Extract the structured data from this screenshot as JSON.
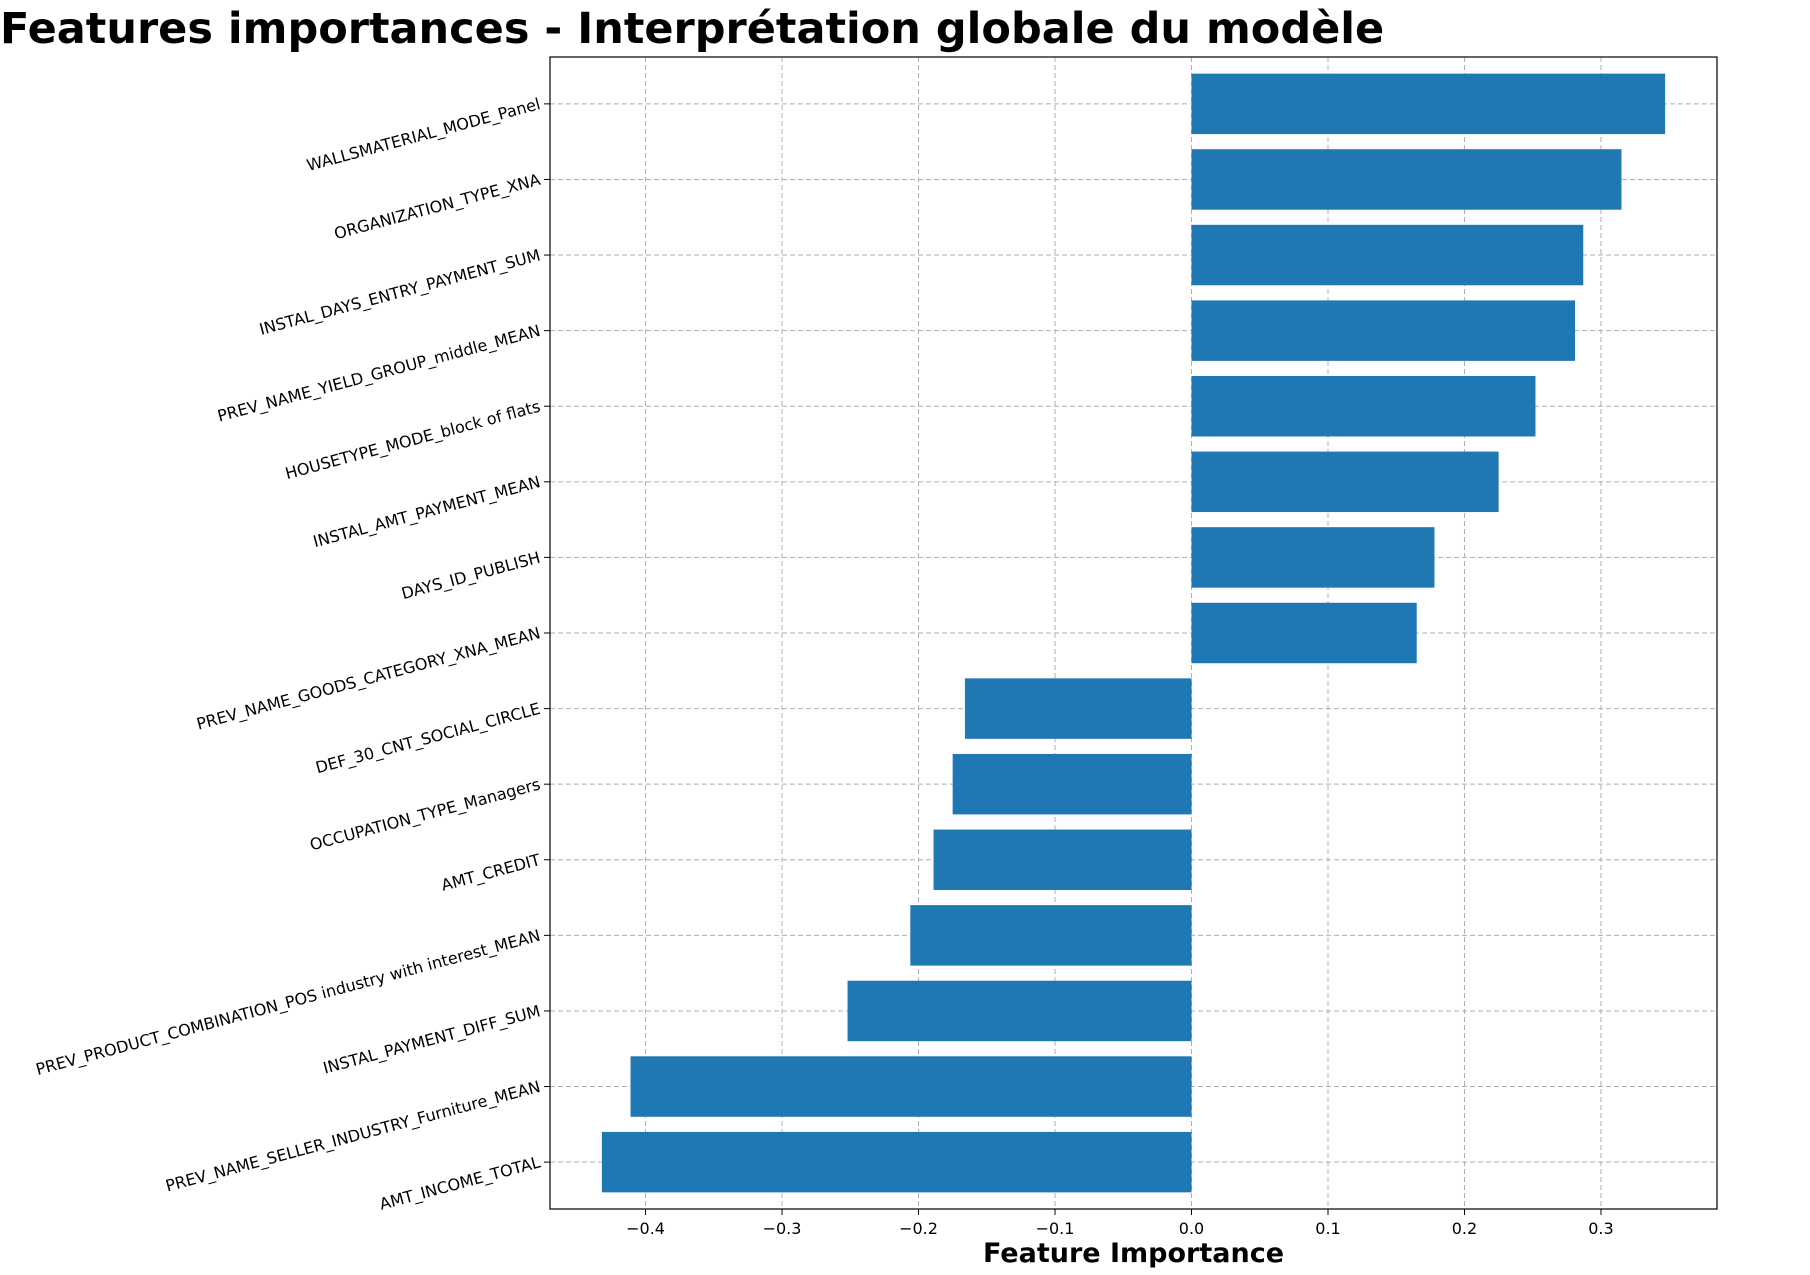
{
  "chart_data": {
    "type": "bar",
    "orientation": "horizontal",
    "title": "Features importances - Interprétation globale du modèle",
    "xlabel": "Feature Importance",
    "ylabel": "",
    "xlim": [
      -0.47,
      0.385
    ],
    "xticks": [
      -0.4,
      -0.3,
      -0.2,
      -0.1,
      0.0,
      0.1,
      0.2,
      0.3
    ],
    "xtick_labels": [
      "−0.4",
      "−0.3",
      "−0.2",
      "−0.1",
      "0.0",
      "0.1",
      "0.2",
      "0.3"
    ],
    "grid": true,
    "bar_color": "#1f77b4",
    "categories": [
      "WALLSMATERIAL_MODE_Panel",
      "ORGANIZATION_TYPE_XNA",
      "INSTAL_DAYS_ENTRY_PAYMENT_SUM",
      "PREV_NAME_YIELD_GROUP_middle_MEAN",
      "HOUSETYPE_MODE_block of flats",
      "INSTAL_AMT_PAYMENT_MEAN",
      "DAYS_ID_PUBLISH",
      "PREV_NAME_GOODS_CATEGORY_XNA_MEAN",
      "DEF_30_CNT_SOCIAL_CIRCLE",
      "OCCUPATION_TYPE_Managers",
      "AMT_CREDIT",
      "PREV_PRODUCT_COMBINATION_POS industry with interest_MEAN",
      "INSTAL_PAYMENT_DIFF_SUM",
      "PREV_NAME_SELLER_INDUSTRY_Furniture_MEAN",
      "AMT_INCOME_TOTAL"
    ],
    "values": [
      0.347,
      0.315,
      0.287,
      0.281,
      0.252,
      0.225,
      0.178,
      0.165,
      -0.166,
      -0.175,
      -0.189,
      -0.206,
      -0.252,
      -0.411,
      -0.432
    ]
  }
}
